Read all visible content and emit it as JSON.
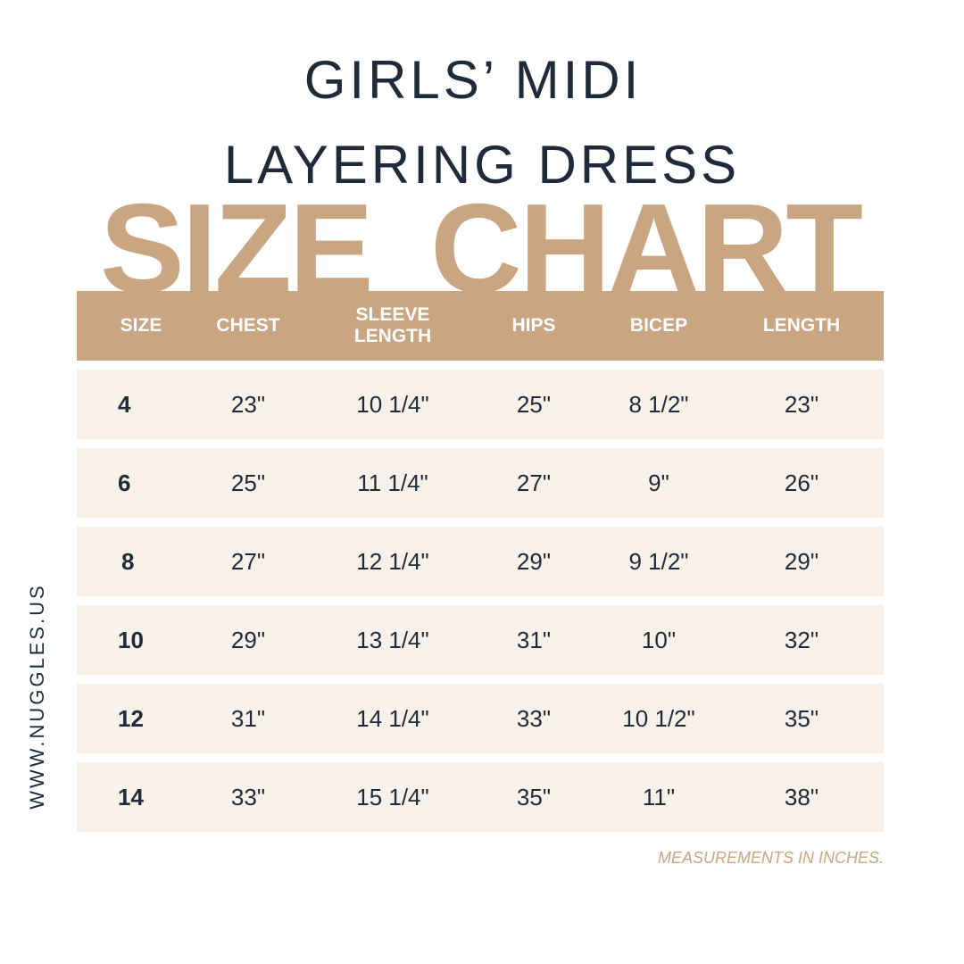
{
  "title": {
    "line1": "GIRLS’ MIDI",
    "line2": "LAYERING DRESS",
    "banner": "SIZE CHART"
  },
  "colors": {
    "accent": "#c9a582",
    "row_bg": "#f7f1e9",
    "text": "#1f2a3a"
  },
  "table": {
    "headers": [
      "SIZE",
      "CHEST",
      "SLEEVE\nLENGTH",
      "HIPS",
      "BICEP",
      "LENGTH"
    ],
    "rows": [
      [
        "4",
        "23\"",
        "10 1/4\"",
        "25\"",
        "8 1/2\"",
        "23\""
      ],
      [
        "6",
        "25\"",
        "11 1/4\"",
        "27\"",
        "9\"",
        "26\""
      ],
      [
        "8",
        "27\"",
        "12 1/4\"",
        "29\"",
        "9 1/2\"",
        "29\""
      ],
      [
        "10",
        "29\"",
        "13 1/4\"",
        "31\"",
        "10\"",
        "32\""
      ],
      [
        "12",
        "31\"",
        "14 1/4\"",
        "33\"",
        "10 1/2\"",
        "35\""
      ],
      [
        "14",
        "33\"",
        "15 1/4\"",
        "35\"",
        "11\"",
        "38\""
      ]
    ]
  },
  "note": "MEASUREMENTS IN INCHES.",
  "website": "WWW.NUGGLES.US"
}
